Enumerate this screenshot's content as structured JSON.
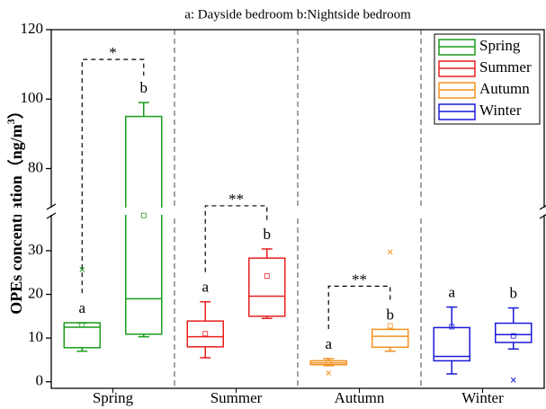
{
  "chart_data": {
    "type": "box",
    "title": "a: Dayside bedroom b:Nightside bedroom",
    "y_label": {
      "main": "OPEs concentration（ng/m",
      "sup": "3",
      "end": "）"
    },
    "categories": [
      "Spring",
      "Summer",
      "Autumn",
      "Winter"
    ],
    "ylim": [
      -1.5,
      120
    ],
    "ybreak": [
      38,
      69
    ],
    "yticks": [
      0,
      10,
      20,
      30,
      80,
      100,
      120
    ],
    "legend": "upper right",
    "series": [
      {
        "name": "Spring",
        "color": "#1a9c1a",
        "boxes": [
          {
            "label": "a",
            "whisker_low": 7,
            "q1": 7.8,
            "median": 12.5,
            "q3": 13.5,
            "whisker_high": 13.5,
            "mean": 13,
            "outliers": [
              25.7
            ]
          },
          {
            "label": "b",
            "whisker_low": 10.3,
            "q1": 10.9,
            "median": 19,
            "q3": 95,
            "whisker_high": 99,
            "mean": 39,
            "outliers": []
          }
        ]
      },
      {
        "name": "Summer",
        "color": "#e8201f",
        "boxes": [
          {
            "label": "a",
            "whisker_low": 5.5,
            "q1": 8,
            "median": 10.3,
            "q3": 13.9,
            "whisker_high": 18.3,
            "mean": 11,
            "outliers": []
          },
          {
            "label": "b",
            "whisker_low": 14.5,
            "q1": 15,
            "median": 19.6,
            "q3": 28.3,
            "whisker_high": 30.4,
            "mean": 24.2,
            "outliers": []
          }
        ]
      },
      {
        "name": "Autumn",
        "color": "#f5901e",
        "boxes": [
          {
            "label": "a",
            "whisker_low": 3.7,
            "q1": 3.9,
            "median": 4.3,
            "q3": 4.8,
            "whisker_high": 5.3,
            "mean": 4.4,
            "outliers": [
              2
            ]
          },
          {
            "label": "b",
            "whisker_low": 7,
            "q1": 7.9,
            "median": 10.4,
            "q3": 12,
            "whisker_high": 12,
            "mean": 12.8,
            "outliers": [
              29.7
            ]
          }
        ]
      },
      {
        "name": "Winter",
        "color": "#1a1ad9",
        "boxes": [
          {
            "label": "a",
            "whisker_low": 1.8,
            "q1": 4.8,
            "median": 5.8,
            "q3": 12.4,
            "whisker_high": 17.1,
            "mean": 12.6,
            "outliers": []
          },
          {
            "label": "b",
            "whisker_low": 7.5,
            "q1": 9,
            "median": 10.8,
            "q3": 13.4,
            "whisker_high": 16.9,
            "mean": 10.5,
            "outliers": [
              0.4
            ]
          }
        ]
      }
    ],
    "significance": [
      {
        "group": 0,
        "text": "*"
      },
      {
        "group": 1,
        "text": "**"
      },
      {
        "group": 2,
        "text": "**"
      }
    ]
  }
}
